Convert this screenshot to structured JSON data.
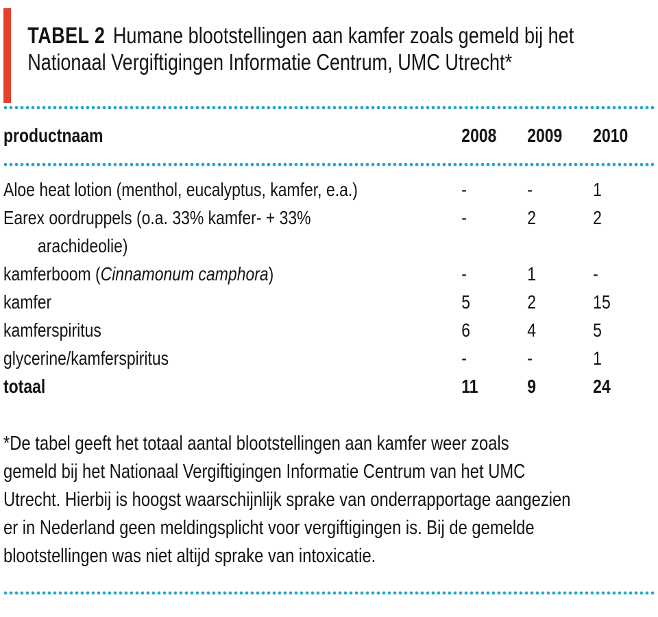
{
  "colors": {
    "accent_red": "#e5402e",
    "dot_blue": "#25a5c9",
    "text": "#141414",
    "bg": "#ffffff"
  },
  "title": {
    "label": "TABEL 2",
    "line1": "Humane blootstellingen aan kamfer zoals gemeld bij het",
    "line2": "Nationaal Vergiftigingen Informatie Centrum, UMC Utrecht*"
  },
  "table": {
    "header": {
      "product": "productnaam",
      "years": [
        "2008",
        "2009",
        "2010"
      ]
    },
    "rows": [
      {
        "name": "Aloe heat lotion (menthol, eucalyptus, kamfer, e.a.)",
        "values": [
          "-",
          "-",
          "1"
        ]
      },
      {
        "name_line1": "Earex oordruppels (o.a. 33% kamfer- + 33%",
        "name_line2": "arachideolie)",
        "values": [
          "-",
          "2",
          "2"
        ]
      },
      {
        "name_prefix": "kamferboom (",
        "name_italic": "Cinnamonum camphora",
        "name_suffix": ")",
        "values": [
          "-",
          "1",
          "-"
        ]
      },
      {
        "name": "kamfer",
        "values": [
          "5",
          "2",
          "15"
        ]
      },
      {
        "name": "kamferspiritus",
        "values": [
          "6",
          "4",
          "5"
        ]
      },
      {
        "name": "glycerine/kamferspiritus",
        "values": [
          "-",
          "-",
          "1"
        ]
      },
      {
        "name": "totaal",
        "values": [
          "11",
          "9",
          "24"
        ]
      }
    ]
  },
  "footnote": {
    "lines": [
      "*De tabel geeft het totaal aantal blootstellingen aan kamfer weer zoals",
      "gemeld bij het Nationaal Vergiftigingen Informatie Centrum van het UMC",
      "Utrecht. Hierbij is hoogst waarschijnlijk sprake van onderrapportage aangezien",
      "er in Nederland geen meldingsplicht voor vergiftigingen is. Bij de gemelde",
      "blootstellingen was niet altijd sprake van intoxicatie."
    ]
  }
}
